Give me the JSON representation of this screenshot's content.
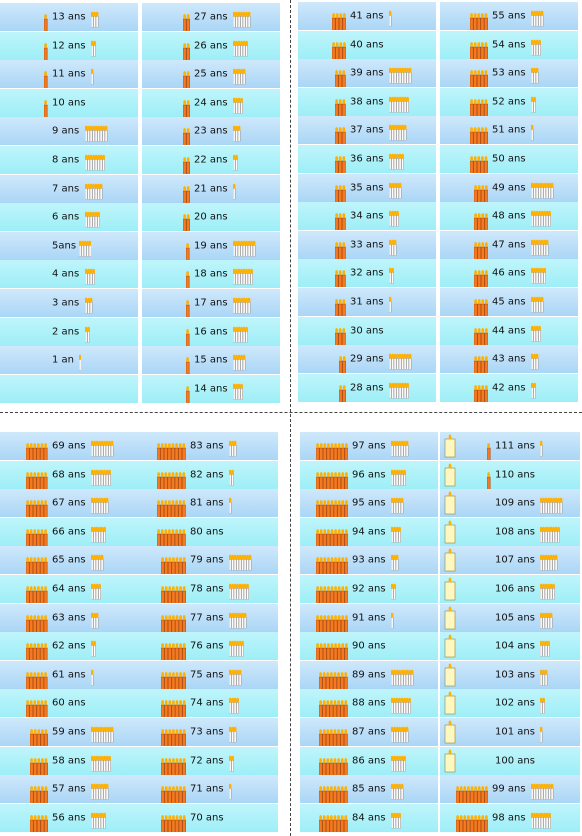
{
  "suffix_plural": "ans",
  "suffix_singular": "an",
  "colors": {
    "candle_body": "#f27a22",
    "candle_edge": "#b14c0d",
    "flame": "#ffb000",
    "small_candle": "#ffffff",
    "big_candle": "#fff7c0"
  },
  "columns": [
    {
      "labels": [
        "13 ans",
        "12 ans",
        "11 ans",
        "10 ans",
        "9 ans",
        "8 ans",
        "7 ans",
        "6 ans",
        "5ans",
        "4 ans",
        "3 ans",
        "2 ans",
        "1 an",
        ""
      ]
    },
    {
      "labels": [
        "27 ans",
        "26 ans",
        "25 ans",
        "24 ans",
        "23 ans",
        "22 ans",
        "21 ans",
        "20 ans",
        "19 ans",
        "18 ans",
        "17 ans",
        "16 ans",
        "15 ans",
        "14 ans"
      ]
    },
    {
      "labels": [
        "41 ans",
        "40 ans",
        "39 ans",
        "38 ans",
        "37 ans",
        "36 ans",
        "35 ans",
        "34 ans",
        "33 ans",
        "32 ans",
        "31 ans",
        "30 ans",
        "29 ans",
        "28 ans"
      ]
    },
    {
      "labels": [
        "55 ans",
        "54 ans",
        "53 ans",
        "52 ans",
        "51 ans",
        "50 ans",
        "49 ans",
        "48 ans",
        "47 ans",
        "46 ans",
        "45 ans",
        "44 ans",
        "43 ans",
        "42 ans"
      ]
    },
    {
      "labels": [
        "69 ans",
        "68 ans",
        "67 ans",
        "66 ans",
        "65 ans",
        "64 ans",
        "63 ans",
        "62 ans",
        "61 ans",
        "60 ans",
        "59 ans",
        "58 ans",
        "57 ans",
        "56 ans"
      ]
    },
    {
      "labels": [
        "83 ans",
        "82 ans",
        "81 ans",
        "80 ans",
        "79 ans",
        "78 ans",
        "77 ans",
        "76 ans",
        "75 ans",
        "74 ans",
        "73 ans",
        "72 ans",
        "71 ans",
        "70 ans"
      ]
    },
    {
      "labels": [
        "97 ans",
        "96 ans",
        "95 ans",
        "94 ans",
        "93 ans",
        "92 ans",
        "91 ans",
        "90 ans",
        "89 ans",
        "88 ans",
        "87 ans",
        "86 ans",
        "85 ans",
        "84 ans"
      ]
    },
    {
      "labels": [
        "111 ans",
        "110 ans",
        "109 ans",
        "108 ans",
        "107 ans",
        "106 ans",
        "105 ans",
        "104 ans",
        "103 ans",
        "102 ans",
        "101 ans",
        "100 ans",
        "99 ans",
        "98 ans"
      ]
    }
  ]
}
